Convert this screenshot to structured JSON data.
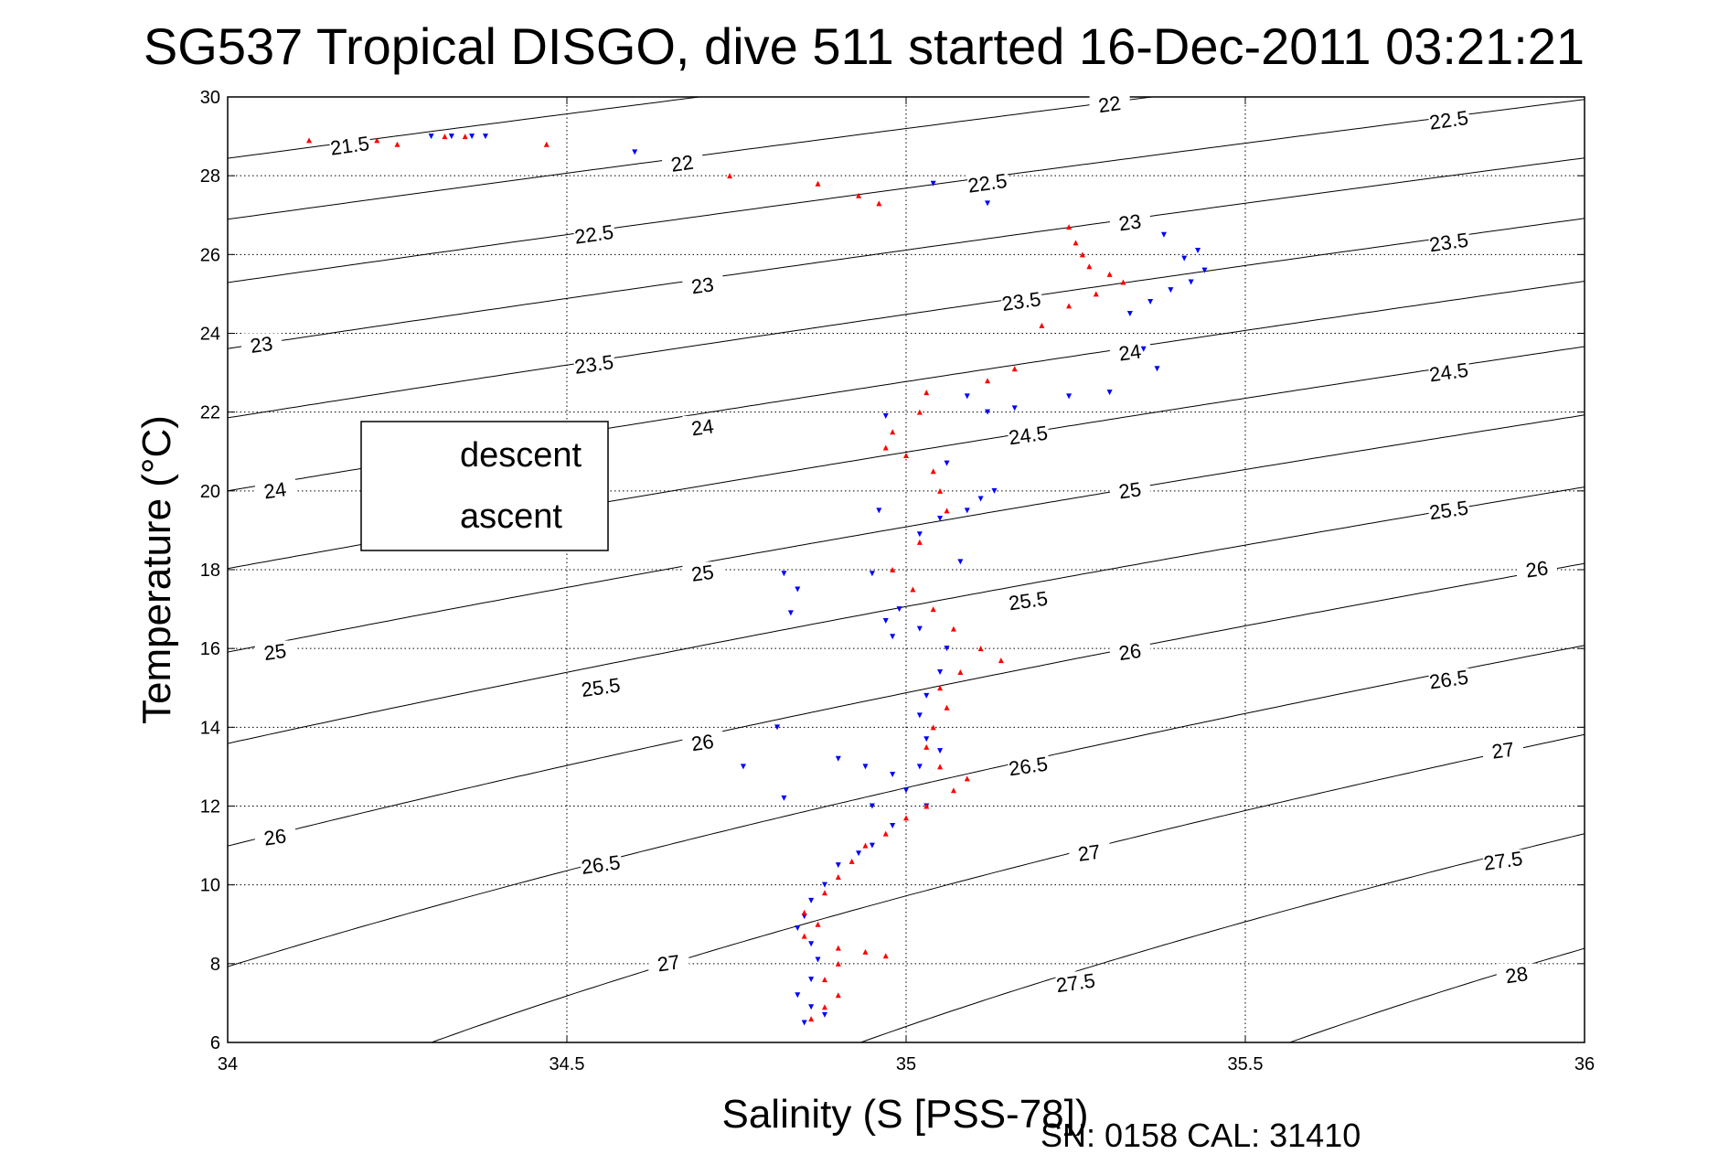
{
  "chart_data": {
    "type": "scatter",
    "title": "SG537 Tropical DISGO, dive 511 started 16-Dec-2011 03:21:21",
    "xlabel": "Salinity (S [PSS-78])",
    "ylabel": "Temperature (°C)",
    "xlim": [
      34,
      36
    ],
    "ylim": [
      6,
      30
    ],
    "x_ticks": [
      "34",
      "34.5",
      "35",
      "35.5",
      "36"
    ],
    "y_ticks": [
      "6",
      "8",
      "10",
      "12",
      "14",
      "16",
      "18",
      "20",
      "22",
      "24",
      "26",
      "28",
      "30"
    ],
    "grid": true,
    "legend_position": "left",
    "footer": "SN: 0158  CAL: 31410",
    "series_colors": {
      "descent": "#0000ff",
      "ascent": "#ff0000"
    },
    "density_contours": [
      {
        "label": "21.5",
        "labels": [
          [
            34.18,
            28.75
          ]
        ]
      },
      {
        "label": "22",
        "labels": [
          [
            34.67,
            28.3
          ],
          [
            35.3,
            29.8
          ]
        ]
      },
      {
        "label": "22.5",
        "labels": [
          [
            34.54,
            26.5
          ],
          [
            35.12,
            27.8
          ],
          [
            35.8,
            29.4
          ]
        ]
      },
      {
        "label": "23",
        "labels": [
          [
            34.05,
            23.7
          ],
          [
            34.7,
            25.2
          ],
          [
            35.33,
            26.8
          ]
        ]
      },
      {
        "label": "23.5",
        "labels": [
          [
            34.54,
            23.2
          ],
          [
            35.17,
            24.8
          ],
          [
            35.8,
            26.3
          ]
        ]
      },
      {
        "label": "24",
        "labels": [
          [
            34.07,
            20.0
          ],
          [
            34.7,
            21.6
          ],
          [
            35.33,
            23.5
          ]
        ]
      },
      {
        "label": "24.5",
        "labels": [
          [
            35.18,
            21.4
          ],
          [
            35.8,
            23.0
          ]
        ]
      },
      {
        "label": "25",
        "labels": [
          [
            34.07,
            15.9
          ],
          [
            34.7,
            17.9
          ],
          [
            35.33,
            20.0
          ]
        ]
      },
      {
        "label": "25.5",
        "labels": [
          [
            34.55,
            15.0
          ],
          [
            35.18,
            17.2
          ],
          [
            35.8,
            19.5
          ]
        ]
      },
      {
        "label": "26",
        "labels": [
          [
            34.07,
            11.2
          ],
          [
            34.7,
            13.6
          ],
          [
            35.33,
            15.9
          ],
          [
            35.93,
            18.0
          ]
        ]
      },
      {
        "label": "26.5",
        "labels": [
          [
            34.55,
            10.5
          ],
          [
            35.18,
            13.0
          ],
          [
            35.8,
            15.2
          ]
        ]
      },
      {
        "label": "27",
        "labels": [
          [
            34.65,
            8.0
          ],
          [
            35.27,
            10.8
          ],
          [
            35.88,
            13.4
          ]
        ]
      },
      {
        "label": "27.5",
        "labels": [
          [
            35.25,
            7.5
          ],
          [
            35.88,
            10.6
          ]
        ]
      },
      {
        "label": "28",
        "labels": [
          [
            35.9,
            7.7
          ]
        ]
      }
    ],
    "series": [
      {
        "name": "descent",
        "marker": "triangle-down",
        "points": [
          [
            34.3,
            29.0
          ],
          [
            34.33,
            29.0
          ],
          [
            34.36,
            29.0
          ],
          [
            34.38,
            29.0
          ],
          [
            34.6,
            28.6
          ],
          [
            35.04,
            27.8
          ],
          [
            35.12,
            27.3
          ],
          [
            35.38,
            26.5
          ],
          [
            35.41,
            25.9
          ],
          [
            35.43,
            26.1
          ],
          [
            35.44,
            25.6
          ],
          [
            35.42,
            25.3
          ],
          [
            35.39,
            25.1
          ],
          [
            35.36,
            24.8
          ],
          [
            35.33,
            24.5
          ],
          [
            35.35,
            23.6
          ],
          [
            35.37,
            23.1
          ],
          [
            35.3,
            22.5
          ],
          [
            35.24,
            22.4
          ],
          [
            35.09,
            22.4
          ],
          [
            35.16,
            22.1
          ],
          [
            35.12,
            22.0
          ],
          [
            34.97,
            21.9
          ],
          [
            35.06,
            20.7
          ],
          [
            35.13,
            20.0
          ],
          [
            35.11,
            19.8
          ],
          [
            35.09,
            19.5
          ],
          [
            35.05,
            19.3
          ],
          [
            35.02,
            18.9
          ],
          [
            35.08,
            18.2
          ],
          [
            34.96,
            19.5
          ],
          [
            34.82,
            17.9
          ],
          [
            34.84,
            17.5
          ],
          [
            34.83,
            16.9
          ],
          [
            34.95,
            17.9
          ],
          [
            34.97,
            16.7
          ],
          [
            34.98,
            16.3
          ],
          [
            34.99,
            17.0
          ],
          [
            35.02,
            16.5
          ],
          [
            35.06,
            16.0
          ],
          [
            35.05,
            15.4
          ],
          [
            35.03,
            14.8
          ],
          [
            35.02,
            14.3
          ],
          [
            35.03,
            13.7
          ],
          [
            35.05,
            13.4
          ],
          [
            35.02,
            13.0
          ],
          [
            34.81,
            14.0
          ],
          [
            34.76,
            13.0
          ],
          [
            34.82,
            12.2
          ],
          [
            34.9,
            13.2
          ],
          [
            34.94,
            13.0
          ],
          [
            34.98,
            12.8
          ],
          [
            35.0,
            12.4
          ],
          [
            35.03,
            12.0
          ],
          [
            34.95,
            12.0
          ],
          [
            34.98,
            11.5
          ],
          [
            34.95,
            11.0
          ],
          [
            34.93,
            10.8
          ],
          [
            34.9,
            10.5
          ],
          [
            34.88,
            10.0
          ],
          [
            34.86,
            9.6
          ],
          [
            34.85,
            9.2
          ],
          [
            34.84,
            8.9
          ],
          [
            34.86,
            8.5
          ],
          [
            34.87,
            8.1
          ],
          [
            34.86,
            7.6
          ],
          [
            34.84,
            7.2
          ],
          [
            34.86,
            6.9
          ],
          [
            34.88,
            6.7
          ],
          [
            34.85,
            6.5
          ]
        ]
      },
      {
        "name": "ascent",
        "marker": "triangle-up",
        "points": [
          [
            34.12,
            28.9
          ],
          [
            34.22,
            28.9
          ],
          [
            34.25,
            28.8
          ],
          [
            34.32,
            29.0
          ],
          [
            34.35,
            29.0
          ],
          [
            34.47,
            28.8
          ],
          [
            34.74,
            28.0
          ],
          [
            34.87,
            27.8
          ],
          [
            34.93,
            27.5
          ],
          [
            34.96,
            27.3
          ],
          [
            35.24,
            26.7
          ],
          [
            35.25,
            26.3
          ],
          [
            35.26,
            26.0
          ],
          [
            35.27,
            25.7
          ],
          [
            35.3,
            25.5
          ],
          [
            35.32,
            25.3
          ],
          [
            35.28,
            25.0
          ],
          [
            35.24,
            24.7
          ],
          [
            35.2,
            24.2
          ],
          [
            35.16,
            23.1
          ],
          [
            35.12,
            22.8
          ],
          [
            35.03,
            22.5
          ],
          [
            35.02,
            22.0
          ],
          [
            34.98,
            21.5
          ],
          [
            34.97,
            21.1
          ],
          [
            35.0,
            20.9
          ],
          [
            35.04,
            20.5
          ],
          [
            35.05,
            20.0
          ],
          [
            35.06,
            19.5
          ],
          [
            35.02,
            18.7
          ],
          [
            34.98,
            18.0
          ],
          [
            35.01,
            17.5
          ],
          [
            35.04,
            17.0
          ],
          [
            35.07,
            16.5
          ],
          [
            35.11,
            16.0
          ],
          [
            35.14,
            15.7
          ],
          [
            35.08,
            15.4
          ],
          [
            35.05,
            15.0
          ],
          [
            35.06,
            14.5
          ],
          [
            35.04,
            14.0
          ],
          [
            35.03,
            13.5
          ],
          [
            35.05,
            13.0
          ],
          [
            35.09,
            12.7
          ],
          [
            35.07,
            12.4
          ],
          [
            35.03,
            12.0
          ],
          [
            35.0,
            11.7
          ],
          [
            34.97,
            11.3
          ],
          [
            34.94,
            11.0
          ],
          [
            34.92,
            10.6
          ],
          [
            34.9,
            10.2
          ],
          [
            34.88,
            9.8
          ],
          [
            34.85,
            9.3
          ],
          [
            34.87,
            9.0
          ],
          [
            34.85,
            8.7
          ],
          [
            34.9,
            8.4
          ],
          [
            34.94,
            8.3
          ],
          [
            34.97,
            8.2
          ],
          [
            34.9,
            8.0
          ],
          [
            34.88,
            7.6
          ],
          [
            34.9,
            7.2
          ],
          [
            34.88,
            6.9
          ],
          [
            34.86,
            6.6
          ]
        ]
      }
    ]
  }
}
